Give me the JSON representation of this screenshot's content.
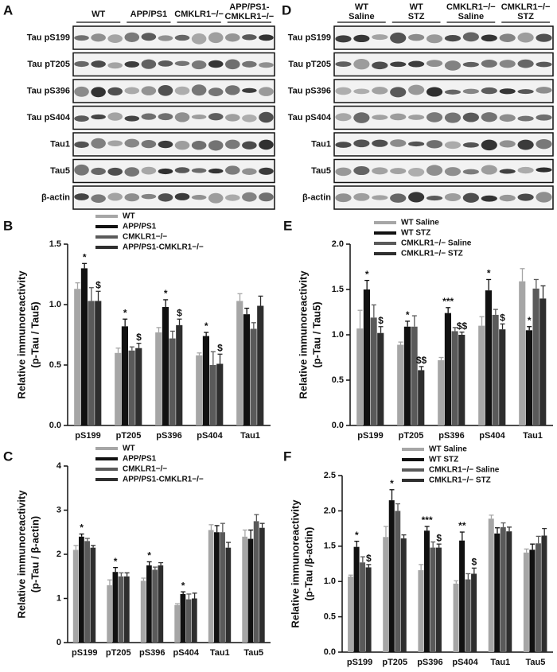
{
  "blots": [
    {
      "letter": "A",
      "groups": [
        [
          "WT"
        ],
        [
          "APP/PS1"
        ],
        [
          "CMKLR1−/−"
        ],
        [
          "APP/PS1-",
          "CMKLR1−/−"
        ]
      ],
      "rows": [
        "Tau pS199",
        "Tau pT205",
        "Tau pS396",
        "Tau pS404",
        "Tau1",
        "Tau5",
        "β-actin"
      ]
    },
    {
      "letter": "D",
      "groups": [
        [
          "WT",
          "Saline"
        ],
        [
          "WT",
          "STZ"
        ],
        [
          "CMKLR1−/−",
          "Saline"
        ],
        [
          "CMKLR1−/−",
          "STZ"
        ]
      ],
      "rows": [
        "Tau pS199",
        "Tau pT205",
        "Tau pS396",
        "Tau pS404",
        "Tau1",
        "Tau5",
        "β-actin"
      ]
    }
  ],
  "chart_data": [
    {
      "type": "bar",
      "letter": "B",
      "ylabel": [
        "Relative immunoreactivity",
        "(p-Tau / Tau5)"
      ],
      "categories": [
        "pS199",
        "pT205",
        "pS396",
        "pS404",
        "Tau1"
      ],
      "ylim": [
        0,
        1.5
      ],
      "yticks": [
        {
          "value": 0,
          "label": "0.0"
        },
        0.5,
        {
          "value": 1,
          "label": "1.0"
        },
        1.5
      ],
      "series": [
        {
          "name": "WT",
          "color": "#a6a6a6",
          "values": [
            1.13,
            0.6,
            0.77,
            0.58,
            1.03
          ],
          "errors": [
            0.05,
            0.04,
            0.04,
            0.02,
            0.06
          ],
          "markers": [
            null,
            null,
            null,
            null,
            null
          ]
        },
        {
          "name": "APP/PS1",
          "color": "#111111",
          "values": [
            1.3,
            0.82,
            0.98,
            0.74,
            0.92
          ],
          "errors": [
            0.04,
            0.06,
            0.06,
            0.03,
            0.05
          ],
          "markers": [
            "*",
            "*",
            "*",
            "*",
            null
          ]
        },
        {
          "name": "CMKLR1−/−",
          "color": "#5a5a5a",
          "values": [
            1.03,
            0.62,
            0.72,
            0.5,
            0.8
          ],
          "errors": [
            0.11,
            0.03,
            0.06,
            0.11,
            0.05
          ],
          "markers": [
            null,
            null,
            null,
            null,
            null
          ]
        },
        {
          "name": "APP/PS1-CMKLR1−/−",
          "color": "#2e2e2e",
          "values": [
            1.03,
            0.64,
            0.83,
            0.51,
            0.99
          ],
          "errors": [
            0.08,
            0.04,
            0.05,
            0.08,
            0.08
          ],
          "markers": [
            "$",
            "$",
            "$",
            "$",
            null
          ]
        }
      ]
    },
    {
      "type": "bar",
      "letter": "C",
      "ylabel": [
        "Relative immunoreactivity",
        "(p-Tau / β-actin)"
      ],
      "categories": [
        "pS199",
        "pT205",
        "pS396",
        "pS404",
        "Tau1",
        "Tau5"
      ],
      "ylim": [
        0,
        4
      ],
      "yticks": [
        0,
        1,
        2,
        3,
        4
      ],
      "series": [
        {
          "name": "WT",
          "color": "#a6a6a6",
          "values": [
            2.1,
            1.3,
            1.4,
            0.85,
            2.55,
            2.4
          ],
          "errors": [
            0.1,
            0.12,
            0.06,
            0.03,
            0.12,
            0.15
          ],
          "markers": [
            null,
            null,
            null,
            null,
            null,
            null
          ]
        },
        {
          "name": "APP/PS1",
          "color": "#111111",
          "values": [
            2.4,
            1.6,
            1.75,
            1.1,
            2.5,
            2.35
          ],
          "errors": [
            0.06,
            0.1,
            0.08,
            0.05,
            0.15,
            0.2
          ],
          "markers": [
            "*",
            "*",
            "*",
            "*",
            null,
            null
          ]
        },
        {
          "name": "CMKLR1−/−",
          "color": "#5a5a5a",
          "values": [
            2.3,
            1.5,
            1.65,
            0.98,
            2.5,
            2.75
          ],
          "errors": [
            0.06,
            0.08,
            0.06,
            0.12,
            0.2,
            0.15
          ],
          "markers": [
            null,
            null,
            null,
            null,
            null,
            null
          ]
        },
        {
          "name": "APP/PS1-CMKLR1−/−",
          "color": "#2e2e2e",
          "values": [
            2.15,
            1.5,
            1.75,
            1.0,
            2.15,
            2.6
          ],
          "errors": [
            0.05,
            0.08,
            0.06,
            0.12,
            0.12,
            0.1
          ],
          "markers": [
            null,
            null,
            null,
            null,
            null,
            null
          ]
        }
      ]
    },
    {
      "type": "bar",
      "letter": "E",
      "ylabel": [
        "Relative immunoreactivity",
        "(p-Tau / Tau5)"
      ],
      "categories": [
        "pS199",
        "pT205",
        "pS396",
        "pS404",
        "Tau1"
      ],
      "ylim": [
        0,
        2
      ],
      "yticks": [
        {
          "value": 0,
          "label": "0.0"
        },
        0.5,
        {
          "value": 1,
          "label": "1.0"
        },
        1.5,
        {
          "value": 2,
          "label": "2.0"
        }
      ],
      "series": [
        {
          "name": "WT Saline",
          "color": "#a6a6a6",
          "values": [
            1.07,
            0.89,
            0.72,
            1.1,
            1.59
          ],
          "errors": [
            0.2,
            0.03,
            0.03,
            0.1,
            0.14
          ],
          "markers": [
            null,
            null,
            null,
            null,
            null
          ]
        },
        {
          "name": "WT STZ",
          "color": "#111111",
          "values": [
            1.5,
            1.09,
            1.24,
            1.49,
            1.05
          ],
          "errors": [
            0.1,
            0.06,
            0.06,
            0.12,
            0.04
          ],
          "markers": [
            "*",
            "*",
            "***",
            "*",
            "*"
          ]
        },
        {
          "name": "CMKLR1−/− Saline",
          "color": "#5a5a5a",
          "values": [
            1.19,
            1.09,
            1.04,
            1.22,
            1.51
          ],
          "errors": [
            0.14,
            0.12,
            0.04,
            0.06,
            0.1
          ],
          "markers": [
            null,
            null,
            null,
            null,
            null
          ]
        },
        {
          "name": "CMKLR1−/− STZ",
          "color": "#2e2e2e",
          "values": [
            1.02,
            0.61,
            1.0,
            1.06,
            1.4
          ],
          "errors": [
            0.07,
            0.04,
            0.03,
            0.06,
            0.14
          ],
          "markers": [
            "$",
            "$$",
            "$$",
            "$",
            null
          ]
        }
      ]
    },
    {
      "type": "bar",
      "letter": "F",
      "ylabel": [
        "Relative immunoreactivity",
        "(p-Tau /β-actin)"
      ],
      "categories": [
        "pS199",
        "pT205",
        "pS396",
        "pS404",
        "Tau1",
        "Tau5"
      ],
      "ylim": [
        0,
        2.5
      ],
      "yticks": [
        {
          "value": 0,
          "label": "0.0"
        },
        0.5,
        {
          "value": 1,
          "label": "1.0"
        },
        1.5,
        {
          "value": 2,
          "label": "2.0"
        },
        2.5
      ],
      "series": [
        {
          "name": "WT Saline",
          "color": "#a6a6a6",
          "values": [
            1.07,
            1.63,
            1.16,
            0.97,
            1.89,
            1.41
          ],
          "errors": [
            0.02,
            0.15,
            0.08,
            0.04,
            0.05,
            0.05
          ],
          "markers": [
            null,
            null,
            null,
            null,
            null,
            null
          ]
        },
        {
          "name": "WT STZ",
          "color": "#111111",
          "values": [
            1.49,
            2.15,
            1.72,
            1.58,
            1.68,
            1.45
          ],
          "errors": [
            0.08,
            0.15,
            0.06,
            0.12,
            0.08,
            0.08
          ],
          "markers": [
            "*",
            "*",
            "***",
            "**",
            null,
            null
          ]
        },
        {
          "name": "CMKLR1−/− Saline",
          "color": "#5a5a5a",
          "values": [
            1.27,
            2.0,
            1.48,
            1.03,
            1.77,
            1.54
          ],
          "errors": [
            0.08,
            0.1,
            0.08,
            0.08,
            0.06,
            0.1
          ],
          "markers": [
            null,
            null,
            null,
            null,
            null,
            null
          ]
        },
        {
          "name": "CMKLR1−/− STZ",
          "color": "#2e2e2e",
          "values": [
            1.2,
            1.61,
            1.48,
            1.11,
            1.71,
            1.65
          ],
          "errors": [
            0.04,
            0.05,
            0.05,
            0.08,
            0.06,
            0.1
          ],
          "markers": [
            "$",
            null,
            "$",
            "$",
            null,
            null
          ]
        }
      ]
    }
  ]
}
